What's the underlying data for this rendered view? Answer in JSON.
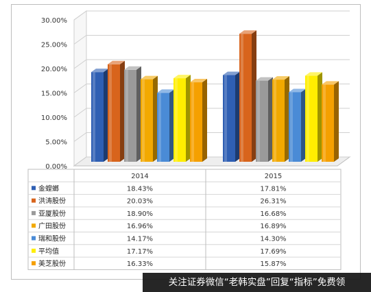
{
  "chart_data": {
    "type": "bar",
    "categories": [
      "2014",
      "2015"
    ],
    "ylim": [
      0,
      30
    ],
    "y_ticks": [
      "0.00%",
      "5.00%",
      "10.00%",
      "15.00%",
      "20.00%",
      "25.00%",
      "30.00%"
    ],
    "series": [
      {
        "name": "金螳螂",
        "values": [
          18.43,
          17.81
        ],
        "labels": [
          "18.43%",
          "17.81%"
        ],
        "color": "#2f5fb3"
      },
      {
        "name": "洪涛股份",
        "values": [
          20.03,
          26.31
        ],
        "labels": [
          "20.03%",
          "26.31%"
        ],
        "color": "#d8641c"
      },
      {
        "name": "亚厦股份",
        "values": [
          18.9,
          16.68
        ],
        "labels": [
          "18.90%",
          "16.68%"
        ],
        "color": "#9a9a9a"
      },
      {
        "name": "广田股份",
        "values": [
          16.96,
          16.89
        ],
        "labels": [
          "16.96%",
          "16.89%"
        ],
        "color": "#f2a900"
      },
      {
        "name": "瑞和股份",
        "values": [
          14.17,
          14.3
        ],
        "labels": [
          "14.17%",
          "14.30%"
        ],
        "color": "#4a8bd6"
      },
      {
        "name": "平均值",
        "values": [
          17.17,
          17.69
        ],
        "labels": [
          "17.17%",
          "17.69%"
        ],
        "color": "#ffee00"
      },
      {
        "name": "美芝股份",
        "values": [
          16.33,
          15.87
        ],
        "labels": [
          "16.33%",
          "15.87%"
        ],
        "color": "#f5a000"
      }
    ],
    "grid": true,
    "legend": "data-table"
  },
  "watermark": "关注证券微信“老韩实盘”回复“指标”免费领"
}
